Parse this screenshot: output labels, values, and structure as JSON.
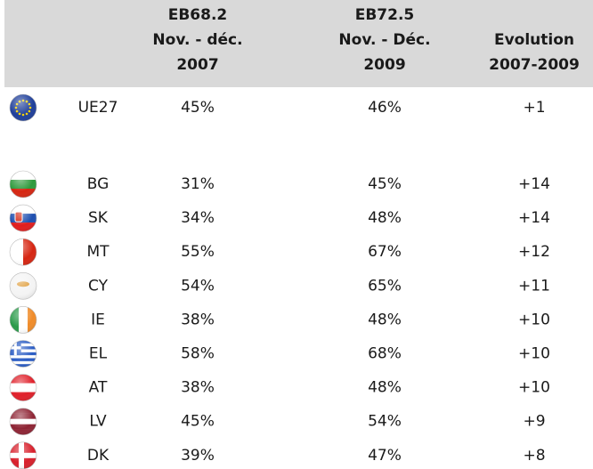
{
  "table": {
    "header": [
      [
        "EB68.2",
        "Nov. - déc.",
        "2007"
      ],
      [
        "EB72.5",
        "Nov. - Déc.",
        "2009"
      ],
      [
        "Evolution",
        "2007-2009"
      ]
    ],
    "rows": [
      [
        "UE27",
        "45%",
        "46%",
        "+1"
      ],
      [
        "BG",
        "31%",
        "45%",
        "+14"
      ],
      [
        "SK",
        "34%",
        "48%",
        "+14"
      ],
      [
        "MT",
        "55%",
        "67%",
        "+12"
      ],
      [
        "CY",
        "54%",
        "65%",
        "+11"
      ],
      [
        "IE",
        "38%",
        "48%",
        "+10"
      ],
      [
        "EL",
        "58%",
        "68%",
        "+10"
      ],
      [
        "AT",
        "38%",
        "48%",
        "+10"
      ],
      [
        "LV",
        "45%",
        "54%",
        "+9"
      ],
      [
        "DK",
        "39%",
        "47%",
        "+8"
      ]
    ]
  }
}
